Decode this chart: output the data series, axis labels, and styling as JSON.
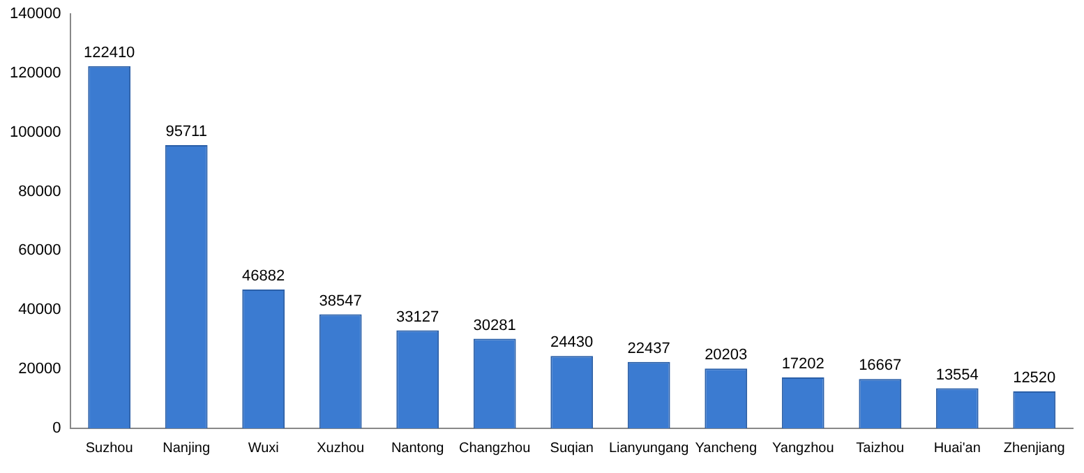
{
  "chart_data": {
    "type": "bar",
    "categories": [
      "Suzhou",
      "Nanjing",
      "Wuxi",
      "Xuzhou",
      "Nantong",
      "Changzhou",
      "Suqian",
      "Lianyungang",
      "Yancheng",
      "Yangzhou",
      "Taizhou",
      "Huai'an",
      "Zhenjiang"
    ],
    "values": [
      122410,
      95711,
      46882,
      38547,
      33127,
      30281,
      24430,
      22437,
      20203,
      17202,
      16667,
      13554,
      12520
    ],
    "color": "#3b7bd1",
    "ylim": [
      0,
      140000
    ],
    "yticks": [
      0,
      20000,
      40000,
      60000,
      80000,
      100000,
      120000,
      140000
    ],
    "grid": false,
    "data_labels": true
  }
}
